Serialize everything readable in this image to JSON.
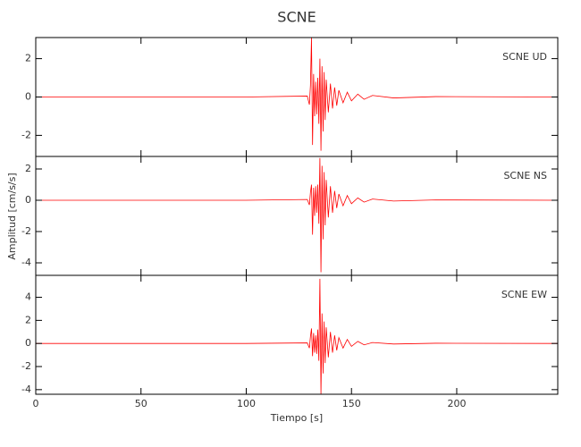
{
  "title": "SCNE",
  "xlabel": "Tiempo [s]",
  "ylabel": "Amplitud [cm/s/s]",
  "chart_data": [
    {
      "type": "line",
      "title": "SCNE   UD",
      "color": "#ff0000",
      "x": [
        0,
        50,
        100,
        129,
        130,
        130.5,
        131,
        131.5,
        132,
        132.5,
        133,
        133.5,
        134,
        134.5,
        135,
        135.5,
        136,
        136.5,
        137,
        137.5,
        138,
        139,
        140,
        141,
        142,
        143,
        144,
        146,
        148,
        150,
        153,
        156,
        160,
        170,
        190,
        248
      ],
      "values": [
        0,
        0,
        0,
        0.05,
        -0.4,
        0.6,
        3.1,
        -2.5,
        1.2,
        -1.0,
        0.8,
        -0.9,
        1.0,
        -1.4,
        2.0,
        -2.8,
        1.6,
        -1.8,
        1.3,
        -1.2,
        0.9,
        -0.8,
        0.7,
        -0.6,
        0.5,
        -0.45,
        0.35,
        -0.3,
        0.25,
        -0.2,
        0.15,
        -0.12,
        0.08,
        -0.05,
        0.02,
        0
      ],
      "xlim": [
        0,
        248
      ],
      "xticks": [
        0,
        50,
        100,
        150,
        200
      ],
      "ylim": [
        -3.1,
        3.1
      ],
      "yticks": [
        -2,
        0,
        2
      ]
    },
    {
      "type": "line",
      "title": "SCNE   NS",
      "color": "#ff0000",
      "x": [
        0,
        50,
        100,
        129,
        130,
        130.5,
        131,
        131.5,
        132,
        132.5,
        133,
        133.5,
        134,
        134.5,
        135,
        135.5,
        136,
        136.5,
        137,
        137.5,
        138,
        139,
        140,
        141,
        142,
        143,
        144,
        146,
        148,
        150,
        153,
        156,
        160,
        170,
        190,
        248
      ],
      "values": [
        0,
        0,
        0,
        0.05,
        -0.3,
        0.5,
        1.0,
        -2.2,
        0.8,
        -1.0,
        0.9,
        -0.8,
        1.0,
        -1.5,
        2.7,
        -4.6,
        2.2,
        -2.5,
        1.8,
        -1.6,
        1.3,
        -1.1,
        0.9,
        -0.8,
        0.6,
        -0.5,
        0.4,
        -0.35,
        0.3,
        -0.22,
        0.15,
        -0.12,
        0.08,
        -0.05,
        0.02,
        0
      ],
      "xlim": [
        0,
        248
      ],
      "xticks": [
        0,
        50,
        100,
        150,
        200
      ],
      "ylim": [
        -4.8,
        2.8
      ],
      "yticks": [
        -4,
        -2,
        0,
        2
      ]
    },
    {
      "type": "line",
      "title": "SCNE   EW",
      "color": "#ff0000",
      "x": [
        0,
        50,
        100,
        129,
        130,
        130.5,
        131,
        131.5,
        132,
        132.5,
        133,
        133.5,
        134,
        134.5,
        135,
        135.5,
        136,
        136.5,
        137,
        137.5,
        138,
        139,
        140,
        141,
        142,
        143,
        144,
        146,
        148,
        150,
        153,
        156,
        160,
        170,
        190,
        248
      ],
      "values": [
        0,
        0,
        0,
        0.05,
        -0.4,
        0.6,
        1.3,
        -1.1,
        0.9,
        -0.8,
        0.7,
        -0.9,
        1.2,
        -1.5,
        5.6,
        -4.4,
        2.6,
        -2.6,
        1.9,
        -1.7,
        1.4,
        -1.2,
        1.0,
        -0.8,
        0.7,
        -0.6,
        0.5,
        -0.4,
        0.35,
        -0.25,
        0.18,
        -0.12,
        0.08,
        -0.05,
        0.02,
        0
      ],
      "xlim": [
        0,
        248
      ],
      "xticks": [
        0,
        50,
        100,
        150,
        200
      ],
      "ylim": [
        -4.4,
        5.9
      ],
      "yticks": [
        -4,
        -2,
        0,
        2,
        4
      ]
    }
  ]
}
